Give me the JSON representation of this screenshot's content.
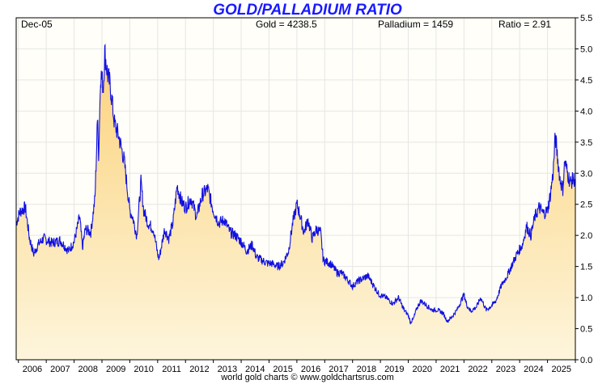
{
  "header": {
    "title": "GOLD/PALLADIUM RATIO",
    "start_label": "Dec-05",
    "gold": "Gold = 4238.5",
    "palladium": "Palladium = 1459",
    "ratio": "Ratio = 2.91"
  },
  "footer": {
    "credit": "world gold charts © www.goldchartsrus.com"
  },
  "colors": {
    "line": "#1010e0",
    "fill_top": "#fcd27a",
    "fill_bottom": "#fdf5dc",
    "grid": "#e6e6e6",
    "title": "#1a1aff"
  },
  "chart_data": {
    "type": "area",
    "title": "GOLD/PALLADIUM RATIO",
    "xlabel": "",
    "ylabel": "",
    "xlim": [
      2005.92,
      2026.0
    ],
    "ylim": [
      0,
      5.5
    ],
    "y_ticks": [
      "0.0",
      "0.5",
      "1.0",
      "1.5",
      "2.0",
      "2.5",
      "3.0",
      "3.5",
      "4.0",
      "4.5",
      "5.0",
      "5.5"
    ],
    "x_ticks": [
      "2006",
      "2007",
      "2008",
      "2009",
      "2010",
      "2011",
      "2012",
      "2013",
      "2014",
      "2015",
      "2016",
      "2017",
      "2018",
      "2019",
      "2020",
      "2021",
      "2022",
      "2023",
      "2024",
      "2025"
    ],
    "grid": true,
    "series": [
      {
        "name": "Gold/Palladium Ratio",
        "points": [
          [
            2005.92,
            2.2
          ],
          [
            2006.05,
            2.38
          ],
          [
            2006.25,
            2.45
          ],
          [
            2006.4,
            1.95
          ],
          [
            2006.55,
            1.7
          ],
          [
            2006.7,
            1.85
          ],
          [
            2006.9,
            1.95
          ],
          [
            2007.2,
            1.88
          ],
          [
            2007.5,
            1.92
          ],
          [
            2007.8,
            1.75
          ],
          [
            2008.0,
            1.9
          ],
          [
            2008.2,
            2.3
          ],
          [
            2008.3,
            1.8
          ],
          [
            2008.4,
            2.1
          ],
          [
            2008.6,
            2.05
          ],
          [
            2008.75,
            2.6
          ],
          [
            2008.85,
            4.0
          ],
          [
            2008.88,
            3.2
          ],
          [
            2008.95,
            4.6
          ],
          [
            2009.05,
            4.4
          ],
          [
            2009.1,
            4.95
          ],
          [
            2009.2,
            4.6
          ],
          [
            2009.3,
            4.4
          ],
          [
            2009.45,
            3.8
          ],
          [
            2009.6,
            3.6
          ],
          [
            2009.8,
            3.2
          ],
          [
            2010.0,
            2.4
          ],
          [
            2010.1,
            2.3
          ],
          [
            2010.25,
            2.0
          ],
          [
            2010.4,
            2.85
          ],
          [
            2010.5,
            2.4
          ],
          [
            2010.65,
            2.2
          ],
          [
            2010.85,
            2.1
          ],
          [
            2011.0,
            1.7
          ],
          [
            2011.05,
            1.62
          ],
          [
            2011.25,
            2.1
          ],
          [
            2011.4,
            1.95
          ],
          [
            2011.55,
            2.2
          ],
          [
            2011.7,
            2.8
          ],
          [
            2011.85,
            2.55
          ],
          [
            2012.0,
            2.45
          ],
          [
            2012.2,
            2.6
          ],
          [
            2012.4,
            2.3
          ],
          [
            2012.6,
            2.65
          ],
          [
            2012.8,
            2.75
          ],
          [
            2013.0,
            2.4
          ],
          [
            2013.2,
            2.2
          ],
          [
            2013.4,
            2.25
          ],
          [
            2013.6,
            2.05
          ],
          [
            2013.8,
            2.0
          ],
          [
            2014.0,
            1.9
          ],
          [
            2014.2,
            1.75
          ],
          [
            2014.4,
            1.85
          ],
          [
            2014.55,
            1.65
          ],
          [
            2014.75,
            1.6
          ],
          [
            2014.95,
            1.55
          ],
          [
            2015.1,
            1.55
          ],
          [
            2015.3,
            1.5
          ],
          [
            2015.5,
            1.55
          ],
          [
            2015.7,
            1.75
          ],
          [
            2015.85,
            2.2
          ],
          [
            2016.0,
            2.5
          ],
          [
            2016.1,
            2.35
          ],
          [
            2016.25,
            2.05
          ],
          [
            2016.4,
            2.25
          ],
          [
            2016.55,
            1.95
          ],
          [
            2016.7,
            2.1
          ],
          [
            2016.85,
            2.05
          ],
          [
            2016.95,
            1.6
          ],
          [
            2017.2,
            1.55
          ],
          [
            2017.45,
            1.4
          ],
          [
            2017.6,
            1.4
          ],
          [
            2017.8,
            1.3
          ],
          [
            2018.0,
            1.18
          ],
          [
            2018.15,
            1.25
          ],
          [
            2018.35,
            1.3
          ],
          [
            2018.55,
            1.35
          ],
          [
            2018.75,
            1.2
          ],
          [
            2018.95,
            1.05
          ],
          [
            2019.2,
            1.0
          ],
          [
            2019.45,
            0.9
          ],
          [
            2019.65,
            1.0
          ],
          [
            2019.85,
            0.8
          ],
          [
            2020.0,
            0.72
          ],
          [
            2020.08,
            0.6
          ],
          [
            2020.18,
            0.65
          ],
          [
            2020.3,
            0.82
          ],
          [
            2020.45,
            0.95
          ],
          [
            2020.65,
            0.88
          ],
          [
            2020.85,
            0.8
          ],
          [
            2021.05,
            0.8
          ],
          [
            2021.25,
            0.75
          ],
          [
            2021.4,
            0.62
          ],
          [
            2021.55,
            0.68
          ],
          [
            2021.75,
            0.8
          ],
          [
            2021.9,
            0.95
          ],
          [
            2022.0,
            1.05
          ],
          [
            2022.1,
            0.88
          ],
          [
            2022.25,
            0.78
          ],
          [
            2022.45,
            0.85
          ],
          [
            2022.6,
            1.0
          ],
          [
            2022.8,
            0.8
          ],
          [
            2022.95,
            0.85
          ],
          [
            2023.15,
            0.95
          ],
          [
            2023.35,
            1.2
          ],
          [
            2023.55,
            1.35
          ],
          [
            2023.75,
            1.55
          ],
          [
            2023.9,
            1.7
          ],
          [
            2024.1,
            1.85
          ],
          [
            2024.25,
            2.15
          ],
          [
            2024.4,
            2.0
          ],
          [
            2024.55,
            2.3
          ],
          [
            2024.7,
            2.45
          ],
          [
            2024.85,
            2.35
          ],
          [
            2025.0,
            2.4
          ],
          [
            2025.1,
            2.65
          ],
          [
            2025.2,
            3.0
          ],
          [
            2025.28,
            3.6
          ],
          [
            2025.35,
            3.3
          ],
          [
            2025.45,
            2.9
          ],
          [
            2025.55,
            2.75
          ],
          [
            2025.62,
            3.2
          ],
          [
            2025.72,
            3.0
          ],
          [
            2025.82,
            2.85
          ],
          [
            2025.92,
            2.9
          ],
          [
            2026.0,
            2.91
          ]
        ]
      }
    ]
  }
}
